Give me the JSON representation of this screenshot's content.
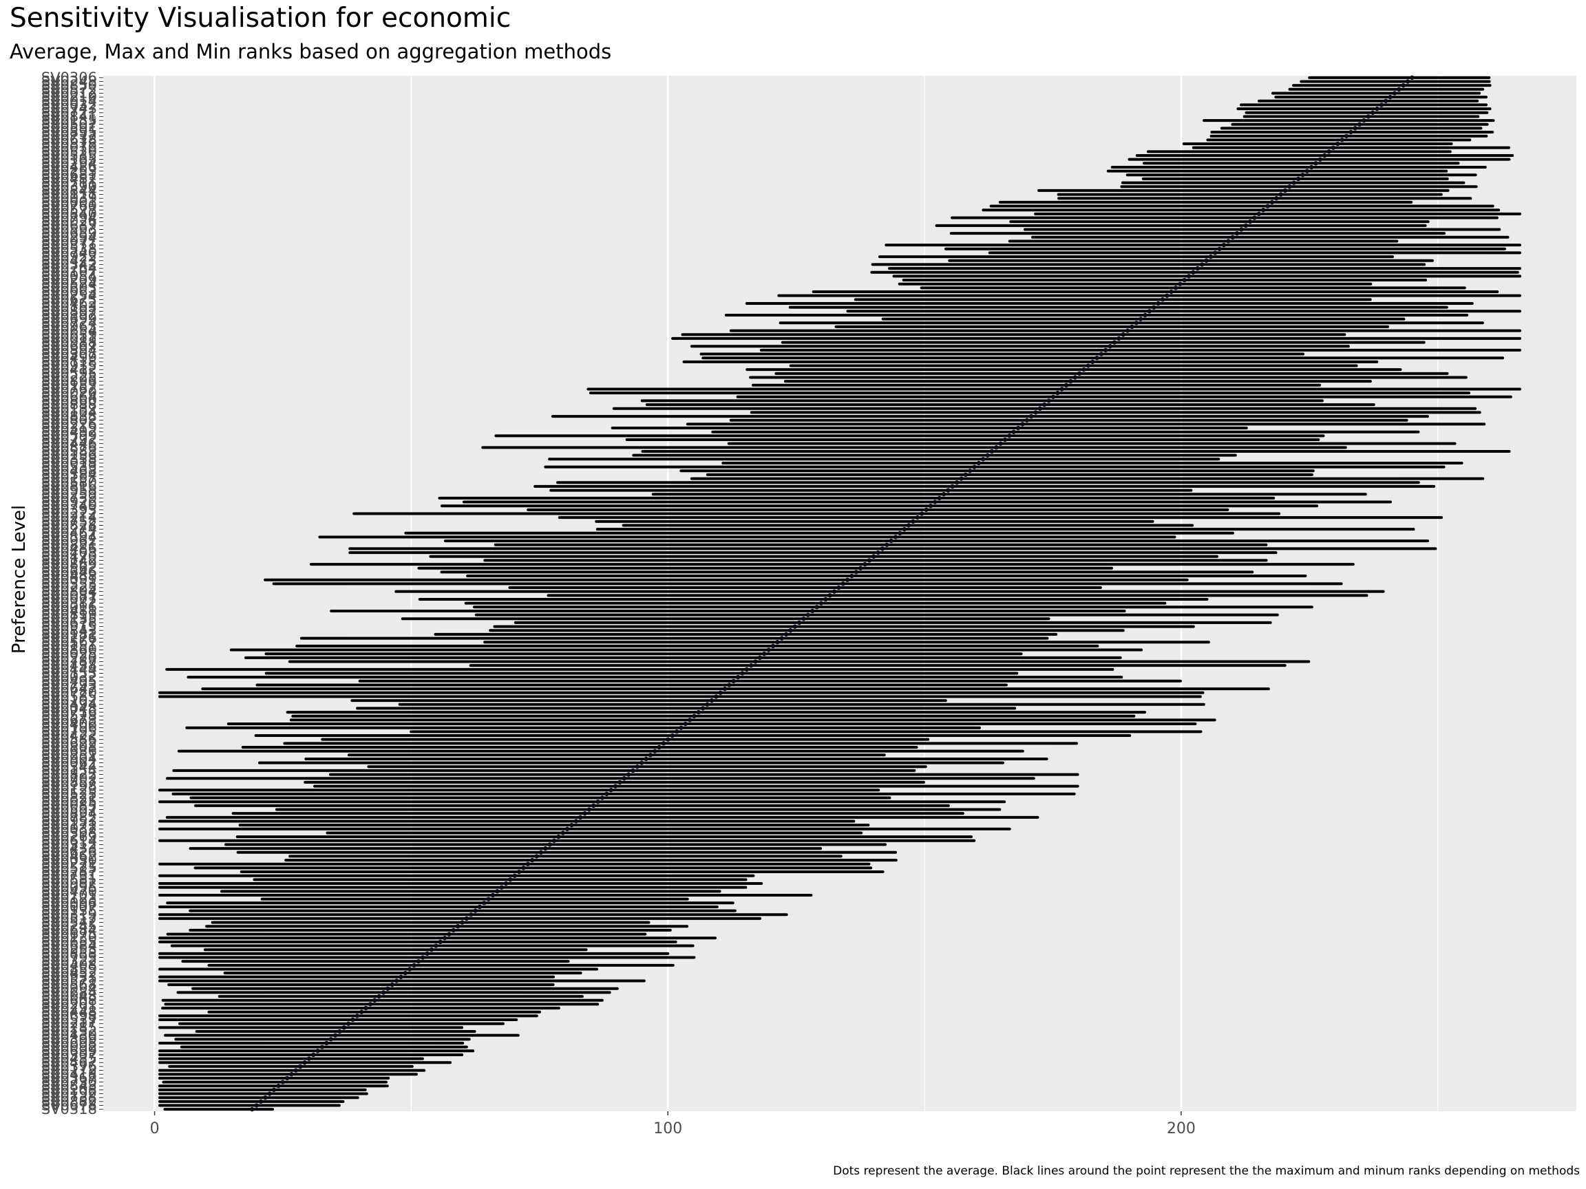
{
  "chart_data": {
    "type": "range-dot",
    "title": "Sensitivity Visualisation for economic",
    "subtitle": "Average, Max and Min ranks based on aggregation methods",
    "xlabel": "",
    "ylabel": "Preference Level",
    "caption": "Dots represent the average. Black lines around the point represent the the maximum and minum ranks depending on methods",
    "xlim": [
      -10,
      277
    ],
    "x_ticks": [
      0,
      100,
      200
    ],
    "grid": true,
    "background": "#ebebeb",
    "line_color": "#000000",
    "dot_color": "#0a0a1a",
    "bottom_label": "SV0318",
    "top_label": "SV0306",
    "label_prefix": "SV0",
    "n_items": 266,
    "sample_ranges": [
      {
        "position": "bottom",
        "avg": 19,
        "min": 2,
        "max": 23
      },
      {
        "position": "lower quartile",
        "avg": 75,
        "min": 8,
        "max": 135
      },
      {
        "position": "middle",
        "avg": 132,
        "min": 50,
        "max": 180
      },
      {
        "position": "upper quartile",
        "avg": 181,
        "min": 95,
        "max": 240
      },
      {
        "position": "top",
        "avg": 245,
        "min": 215,
        "max": 262
      }
    ]
  }
}
